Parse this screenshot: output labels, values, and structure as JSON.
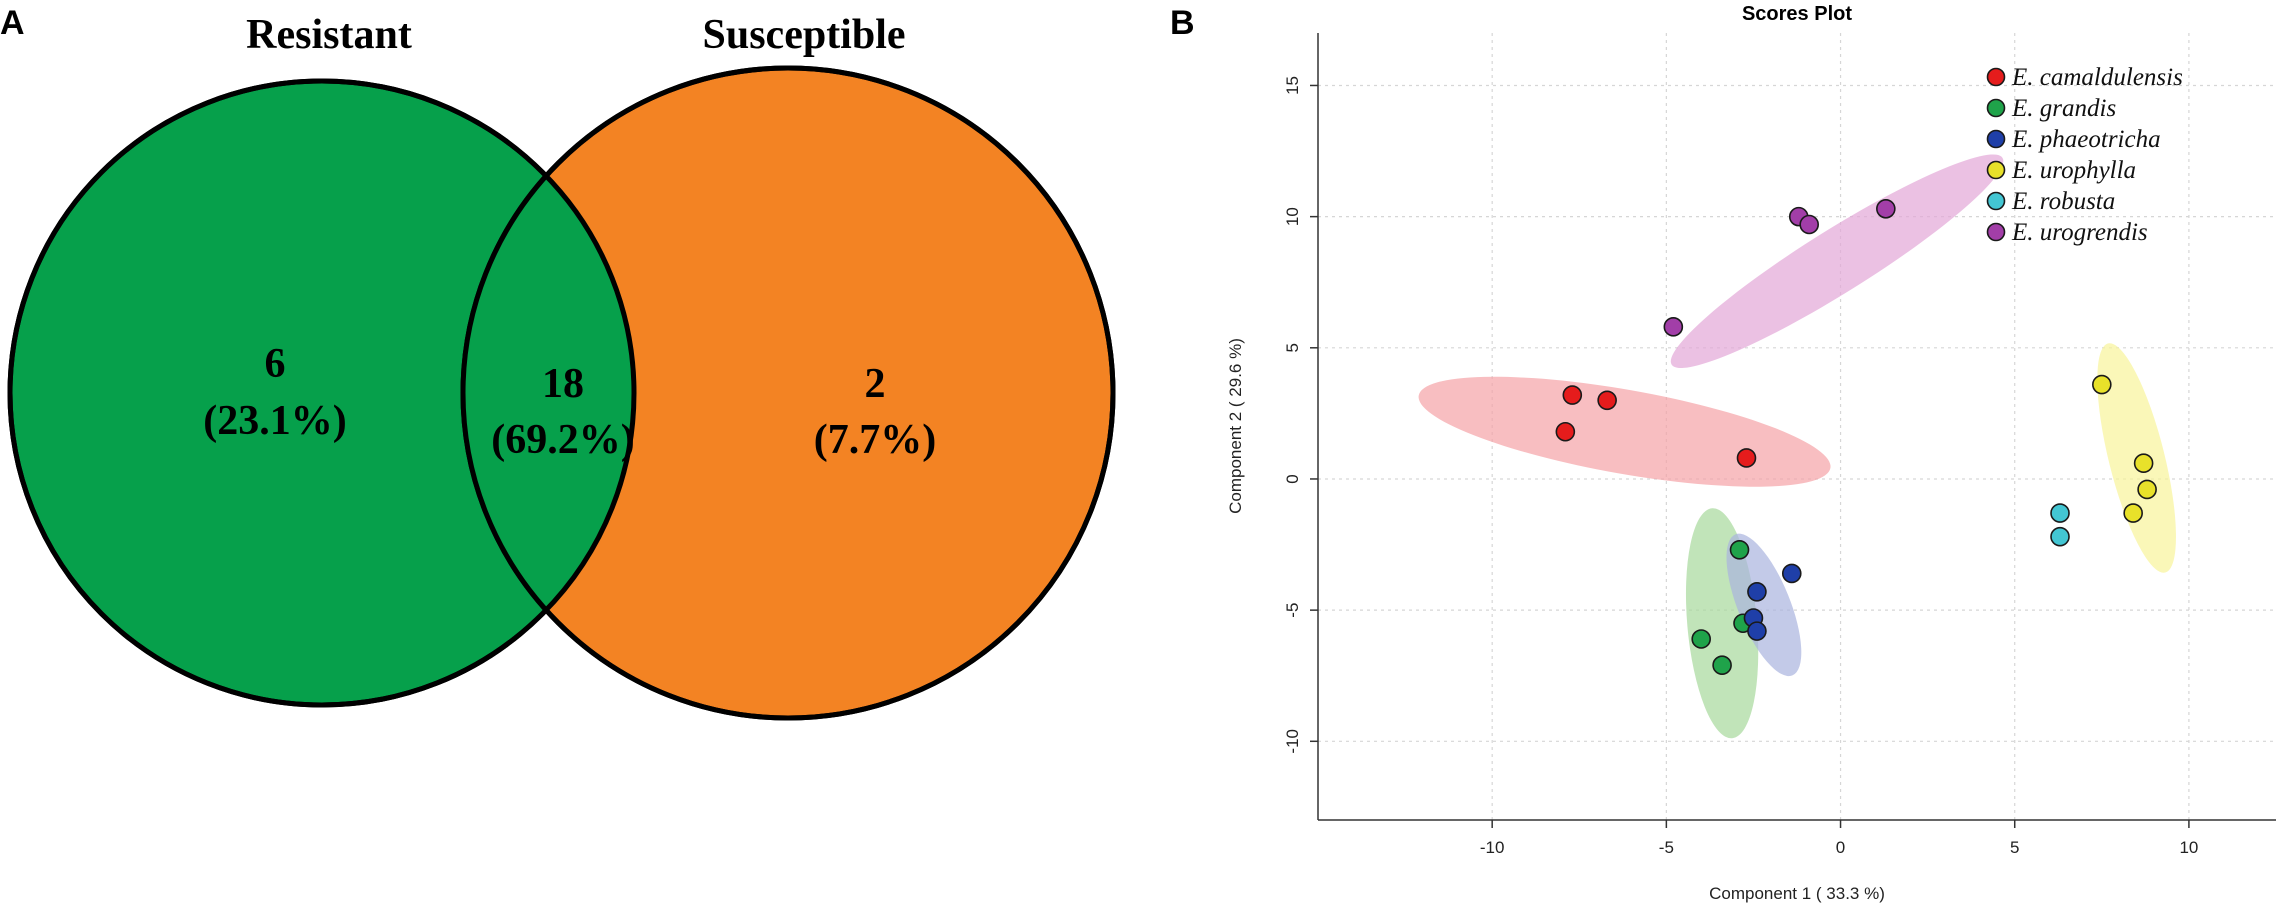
{
  "panels": {
    "a_letter": "A",
    "b_letter": "B"
  },
  "chart_data": [
    {
      "type": "venn",
      "sets": [
        {
          "name": "Resistant",
          "color": "#06a04b"
        },
        {
          "name": "Susceptible",
          "color": "#f38323"
        }
      ],
      "regions": [
        {
          "id": "resistant_only",
          "count": "6",
          "percent": "(23.1%)"
        },
        {
          "id": "both",
          "count": "18",
          "percent": "(69.2%)"
        },
        {
          "id": "susceptible_only",
          "count": "2",
          "percent": "(7.7%)"
        }
      ]
    },
    {
      "type": "scatter",
      "title": "Scores Plot",
      "xlabel": "Component 1 ( 33.3 %)",
      "ylabel": "Component 2 ( 29.6 %)",
      "xlim": [
        -15,
        12.5
      ],
      "ylim": [
        -13,
        17
      ],
      "xticks": [
        -10,
        -5,
        0,
        5,
        10
      ],
      "yticks": [
        -10,
        -5,
        0,
        5,
        10,
        15
      ],
      "xtick_labels": [
        "-10",
        "-5",
        "0",
        "5",
        "10"
      ],
      "ytick_labels": [
        "-10",
        "-5",
        "0",
        "5",
        "10",
        "15"
      ],
      "grid": true,
      "legend_position": "top-right",
      "series": [
        {
          "name": "E. camaldulensis",
          "color": "#e51c1c",
          "ellipse_color": "#f5a3a6",
          "points": [
            [
              -7.7,
              3.2
            ],
            [
              -6.7,
              3.0
            ],
            [
              -7.9,
              1.8
            ],
            [
              -2.7,
              0.8
            ]
          ],
          "ellipse": {
            "cx": -6.2,
            "cy": 1.8,
            "rx": 6.0,
            "ry": 1.6,
            "angle": -10
          }
        },
        {
          "name": "E. grandis",
          "color": "#1fa34a",
          "ellipse_color": "#a7d99b",
          "points": [
            [
              -2.9,
              -2.7
            ],
            [
              -2.8,
              -5.5
            ],
            [
              -4.0,
              -6.1
            ],
            [
              -3.4,
              -7.1
            ]
          ],
          "ellipse": {
            "cx": -3.4,
            "cy": -5.5,
            "rx": 1.0,
            "ry": 4.4,
            "angle": 5
          }
        },
        {
          "name": "E. phaeotricha",
          "color": "#1f3fa8",
          "ellipse_color": "#a9b4de",
          "points": [
            [
              -1.4,
              -3.6
            ],
            [
              -2.4,
              -4.3
            ],
            [
              -2.5,
              -5.3
            ],
            [
              -2.4,
              -5.8
            ]
          ],
          "ellipse": {
            "cx": -2.2,
            "cy": -4.8,
            "rx": 0.75,
            "ry": 2.9,
            "angle": 22
          }
        },
        {
          "name": "E. urophylla",
          "color": "#e8e12a",
          "ellipse_color": "#f8f39a",
          "points": [
            [
              7.5,
              3.6
            ],
            [
              8.7,
              0.6
            ],
            [
              8.8,
              -0.4
            ],
            [
              8.4,
              -1.3
            ]
          ],
          "ellipse": {
            "cx": 8.5,
            "cy": 0.8,
            "rx": 0.8,
            "ry": 4.5,
            "angle": 14
          }
        },
        {
          "name": "E. robusta",
          "color": "#43c6d3",
          "ellipse_color": "#a8e6ec",
          "points": [
            [
              6.3,
              -1.3
            ],
            [
              6.3,
              -2.2
            ]
          ],
          "ellipse": null
        },
        {
          "name": "E. urogrendis",
          "color": "#a23ea8",
          "ellipse_color": "#e3a6d7",
          "points": [
            [
              -4.8,
              5.8
            ],
            [
              -1.2,
              10.0
            ],
            [
              -0.9,
              9.7
            ],
            [
              1.3,
              10.3
            ]
          ],
          "ellipse": {
            "cx": -0.1,
            "cy": 8.3,
            "rx": 5.6,
            "ry": 1.2,
            "angle": 32
          }
        }
      ]
    }
  ]
}
